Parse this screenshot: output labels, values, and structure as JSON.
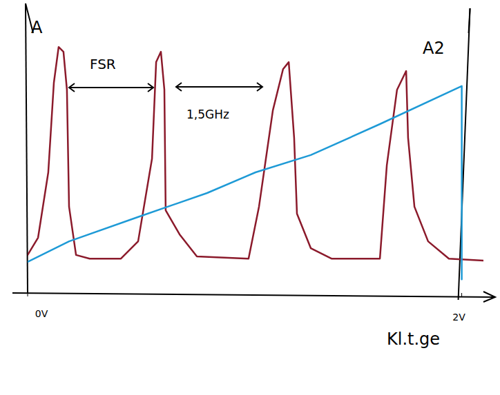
{
  "chart_data": {
    "type": "line",
    "y_label": "A",
    "y2_label": "A2",
    "x_label": "Kl.t.ge",
    "annotations": [
      "FSR",
      "1,5GHz"
    ],
    "xlim": [
      0,
      2.1
    ],
    "xticks": [
      {
        "value": 0,
        "label": "0V"
      },
      {
        "value": 2,
        "label": "2V"
      }
    ],
    "ylim": [
      0,
      1
    ],
    "y2lim": [
      0,
      1
    ],
    "tick_labels": "x",
    "series": [
      {
        "color": "#8b1a2b",
        "x": [
          0,
          0.048,
          0.095,
          0.121,
          0.143,
          0.165,
          0.181,
          0.191,
          0.223,
          0.286,
          0.43,
          0.509,
          0.573,
          0.592,
          0.614,
          0.63,
          0.636,
          0.7,
          0.78,
          1.018,
          1.066,
          1.13,
          1.177,
          1.203,
          1.228,
          1.241,
          1.305,
          1.4,
          1.623,
          1.655,
          1.702,
          1.744,
          1.753,
          1.782,
          1.845,
          1.941,
          2.1
        ],
        "values": [
          0.136,
          0.198,
          0.432,
          0.753,
          0.881,
          0.864,
          0.728,
          0.309,
          0.136,
          0.123,
          0.123,
          0.185,
          0.481,
          0.827,
          0.864,
          0.728,
          0.296,
          0.21,
          0.131,
          0.123,
          0.309,
          0.654,
          0.802,
          0.827,
          0.556,
          0.284,
          0.16,
          0.123,
          0.123,
          0.457,
          0.728,
          0.795,
          0.556,
          0.309,
          0.185,
          0.123,
          0.116
        ]
      },
      {
        "color": "#1e9ad6",
        "axis": "y2",
        "x": [
          0,
          0.191,
          0.509,
          0.827,
          1.05,
          1.305,
          1.623,
          2.0,
          2.0
        ],
        "values": [
          0.111,
          0.185,
          0.272,
          0.358,
          0.432,
          0.494,
          0.605,
          0.741,
          0.049
        ]
      }
    ]
  }
}
